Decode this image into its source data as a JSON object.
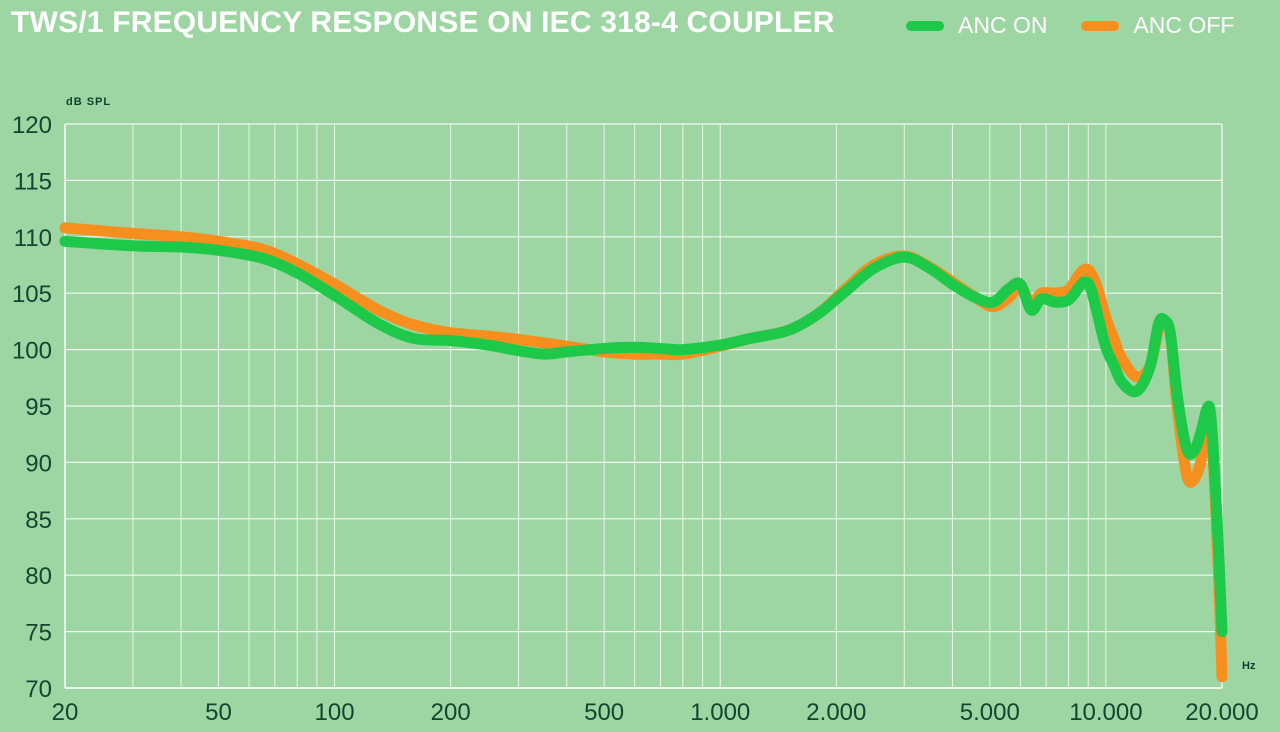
{
  "chart_data": {
    "type": "line",
    "title": "TWS/1 FREQUENCY RESPONSE ON IEC 318-4 COUPLER",
    "ylabel": "dB SPL",
    "xlabel": "Hz",
    "x_scale": "log",
    "xlim": [
      20,
      20000
    ],
    "ylim": [
      70,
      120
    ],
    "grid": true,
    "legend_position": "top-right",
    "x_tick_labels": [
      {
        "value": 20,
        "label": "20"
      },
      {
        "value": 50,
        "label": "50"
      },
      {
        "value": 100,
        "label": "100"
      },
      {
        "value": 200,
        "label": "200"
      },
      {
        "value": 500,
        "label": "500"
      },
      {
        "value": 1000,
        "label": "1.000"
      },
      {
        "value": 2000,
        "label": "2.000"
      },
      {
        "value": 5000,
        "label": "5.000"
      },
      {
        "value": 10000,
        "label": "10.000"
      },
      {
        "value": 20000,
        "label": "20.000"
      }
    ],
    "y_ticks": [
      70,
      75,
      80,
      85,
      90,
      95,
      100,
      105,
      110,
      115,
      120
    ],
    "series": [
      {
        "name": "ANC OFF",
        "color": "#f68f1e",
        "x": [
          20,
          30,
          40,
          50,
          65,
          80,
          100,
          130,
          160,
          200,
          250,
          300,
          400,
          500,
          600,
          700,
          800,
          1000,
          1200,
          1500,
          1800,
          2100,
          2500,
          3000,
          3500,
          4000,
          4600,
          5100,
          5600,
          6000,
          6400,
          6800,
          7400,
          8000,
          8500,
          8800,
          9100,
          9500,
          10000,
          10500,
          11000,
          12000,
          13000,
          13700,
          14200,
          14700,
          15300,
          16200,
          17000,
          17800,
          18300,
          18700,
          19200,
          19600,
          20000
        ],
        "y": [
          110.8,
          110.3,
          110,
          109.6,
          108.9,
          107.6,
          105.8,
          103.5,
          102.2,
          101.5,
          101.2,
          100.9,
          100.3,
          99.8,
          99.6,
          99.6,
          99.6,
          100.3,
          101,
          101.7,
          103.2,
          105.3,
          107.5,
          108.3,
          107.3,
          106,
          104.6,
          103.8,
          104.6,
          105.6,
          104,
          105,
          105,
          105.3,
          106.6,
          107.1,
          106.9,
          105.5,
          102.8,
          100.9,
          99.2,
          97.6,
          98.5,
          101.8,
          102.4,
          101.4,
          95,
          88.9,
          88.6,
          90.8,
          94.2,
          93.7,
          87,
          80,
          71
        ]
      },
      {
        "name": "ANC ON",
        "color": "#1ec94a",
        "x": [
          20,
          30,
          40,
          50,
          65,
          80,
          100,
          130,
          160,
          200,
          250,
          300,
          350,
          400,
          500,
          600,
          700,
          800,
          1000,
          1200,
          1500,
          1800,
          2100,
          2500,
          3000,
          3500,
          4000,
          4600,
          5100,
          5600,
          6000,
          6400,
          6800,
          7400,
          8000,
          8500,
          8800,
          9100,
          9500,
          10000,
          10500,
          11000,
          12000,
          13000,
          13700,
          14200,
          14700,
          15300,
          16200,
          17000,
          17800,
          18300,
          18700,
          19200,
          19600,
          20000
        ],
        "y": [
          109.6,
          109.2,
          109.1,
          108.8,
          108.1,
          106.8,
          104.8,
          102.3,
          101,
          100.8,
          100.4,
          99.9,
          99.6,
          99.8,
          100.1,
          100.2,
          100.1,
          100,
          100.4,
          101,
          101.7,
          103.2,
          105.1,
          107.2,
          108.2,
          107.2,
          105.8,
          104.6,
          104.2,
          105.4,
          105.8,
          103.5,
          104.5,
          104.2,
          104.4,
          105.5,
          106,
          105.6,
          103.2,
          100.2,
          98.6,
          97.1,
          96.3,
          98.4,
          102.3,
          102.6,
          101.4,
          96,
          91.2,
          91.1,
          93.2,
          94.8,
          94.2,
          88,
          82,
          75
        ]
      }
    ]
  }
}
